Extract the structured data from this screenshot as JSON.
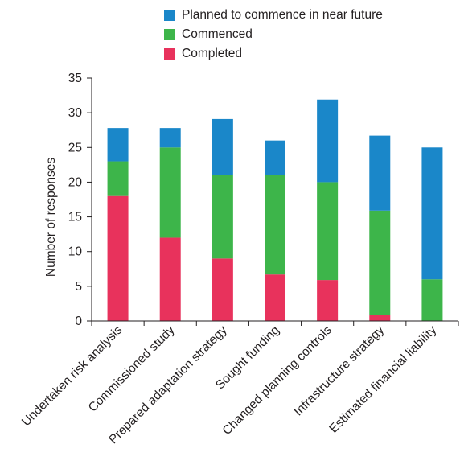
{
  "chart_data": {
    "type": "bar",
    "stacked": true,
    "title": "",
    "xlabel": "",
    "ylabel": "Number of responses",
    "ylim": [
      0,
      35
    ],
    "yticks": [
      0,
      5,
      10,
      15,
      20,
      25,
      30,
      35
    ],
    "grid": false,
    "legend_position": "top",
    "categories": [
      "Undertaken risk analysis",
      "Commissioned study",
      "Prepared adaptation strategy",
      "Sought funding",
      "Changed planning controls",
      "Infrastructure strategy",
      "Estimated financial liability"
    ],
    "series": [
      {
        "name": "Completed",
        "color": "#e8325c",
        "values": [
          18,
          12,
          9,
          6.7,
          5.9,
          0.9,
          0
        ]
      },
      {
        "name": "Commenced",
        "color": "#3db54a",
        "values": [
          5,
          13,
          12,
          14.3,
          14.1,
          15,
          6
        ]
      },
      {
        "name": "Planned to commence in near future",
        "color": "#1a87c9",
        "values": [
          4.8,
          2.8,
          8.1,
          5,
          11.9,
          10.8,
          19
        ]
      }
    ],
    "legend_order": [
      "Planned to commence in near future",
      "Commenced",
      "Completed"
    ]
  }
}
